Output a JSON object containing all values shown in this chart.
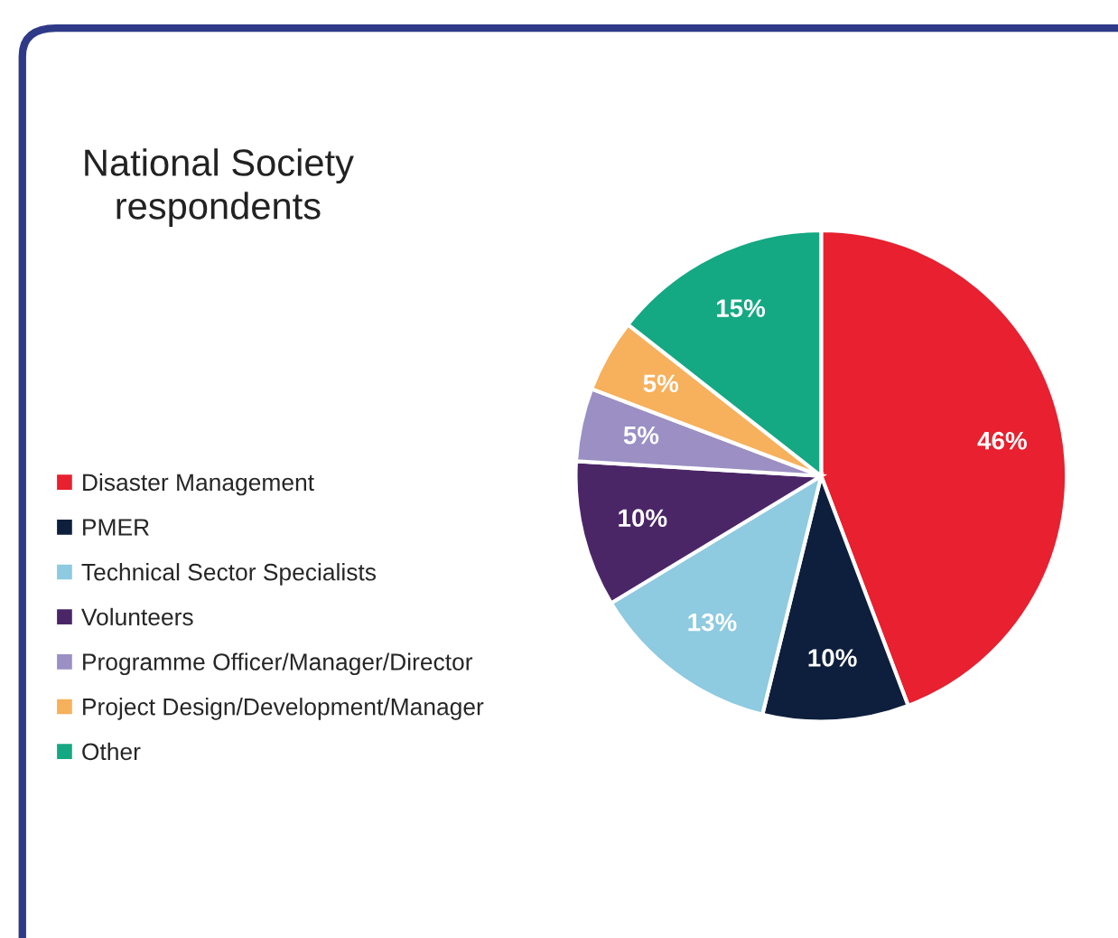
{
  "chart_data": {
    "type": "pie",
    "title": "National Society\nrespondents",
    "categories": [
      "Disaster Management",
      "PMER",
      "Technical Sector Specialists",
      "Volunteers",
      "Programme Officer/Manager/Director",
      "Project Design/Development/Manager",
      "Other"
    ],
    "values": [
      46,
      10,
      13,
      10,
      5,
      5,
      15
    ],
    "colors": [
      "#e8202f",
      "#0d1f3c",
      "#8ecae0",
      "#4b2667",
      "#9b8fc4",
      "#f7b05b",
      "#14a883"
    ],
    "value_labels": [
      "46%",
      "10%",
      "13%",
      "10%",
      "5%",
      "5%",
      "15%"
    ],
    "legend": "left"
  }
}
